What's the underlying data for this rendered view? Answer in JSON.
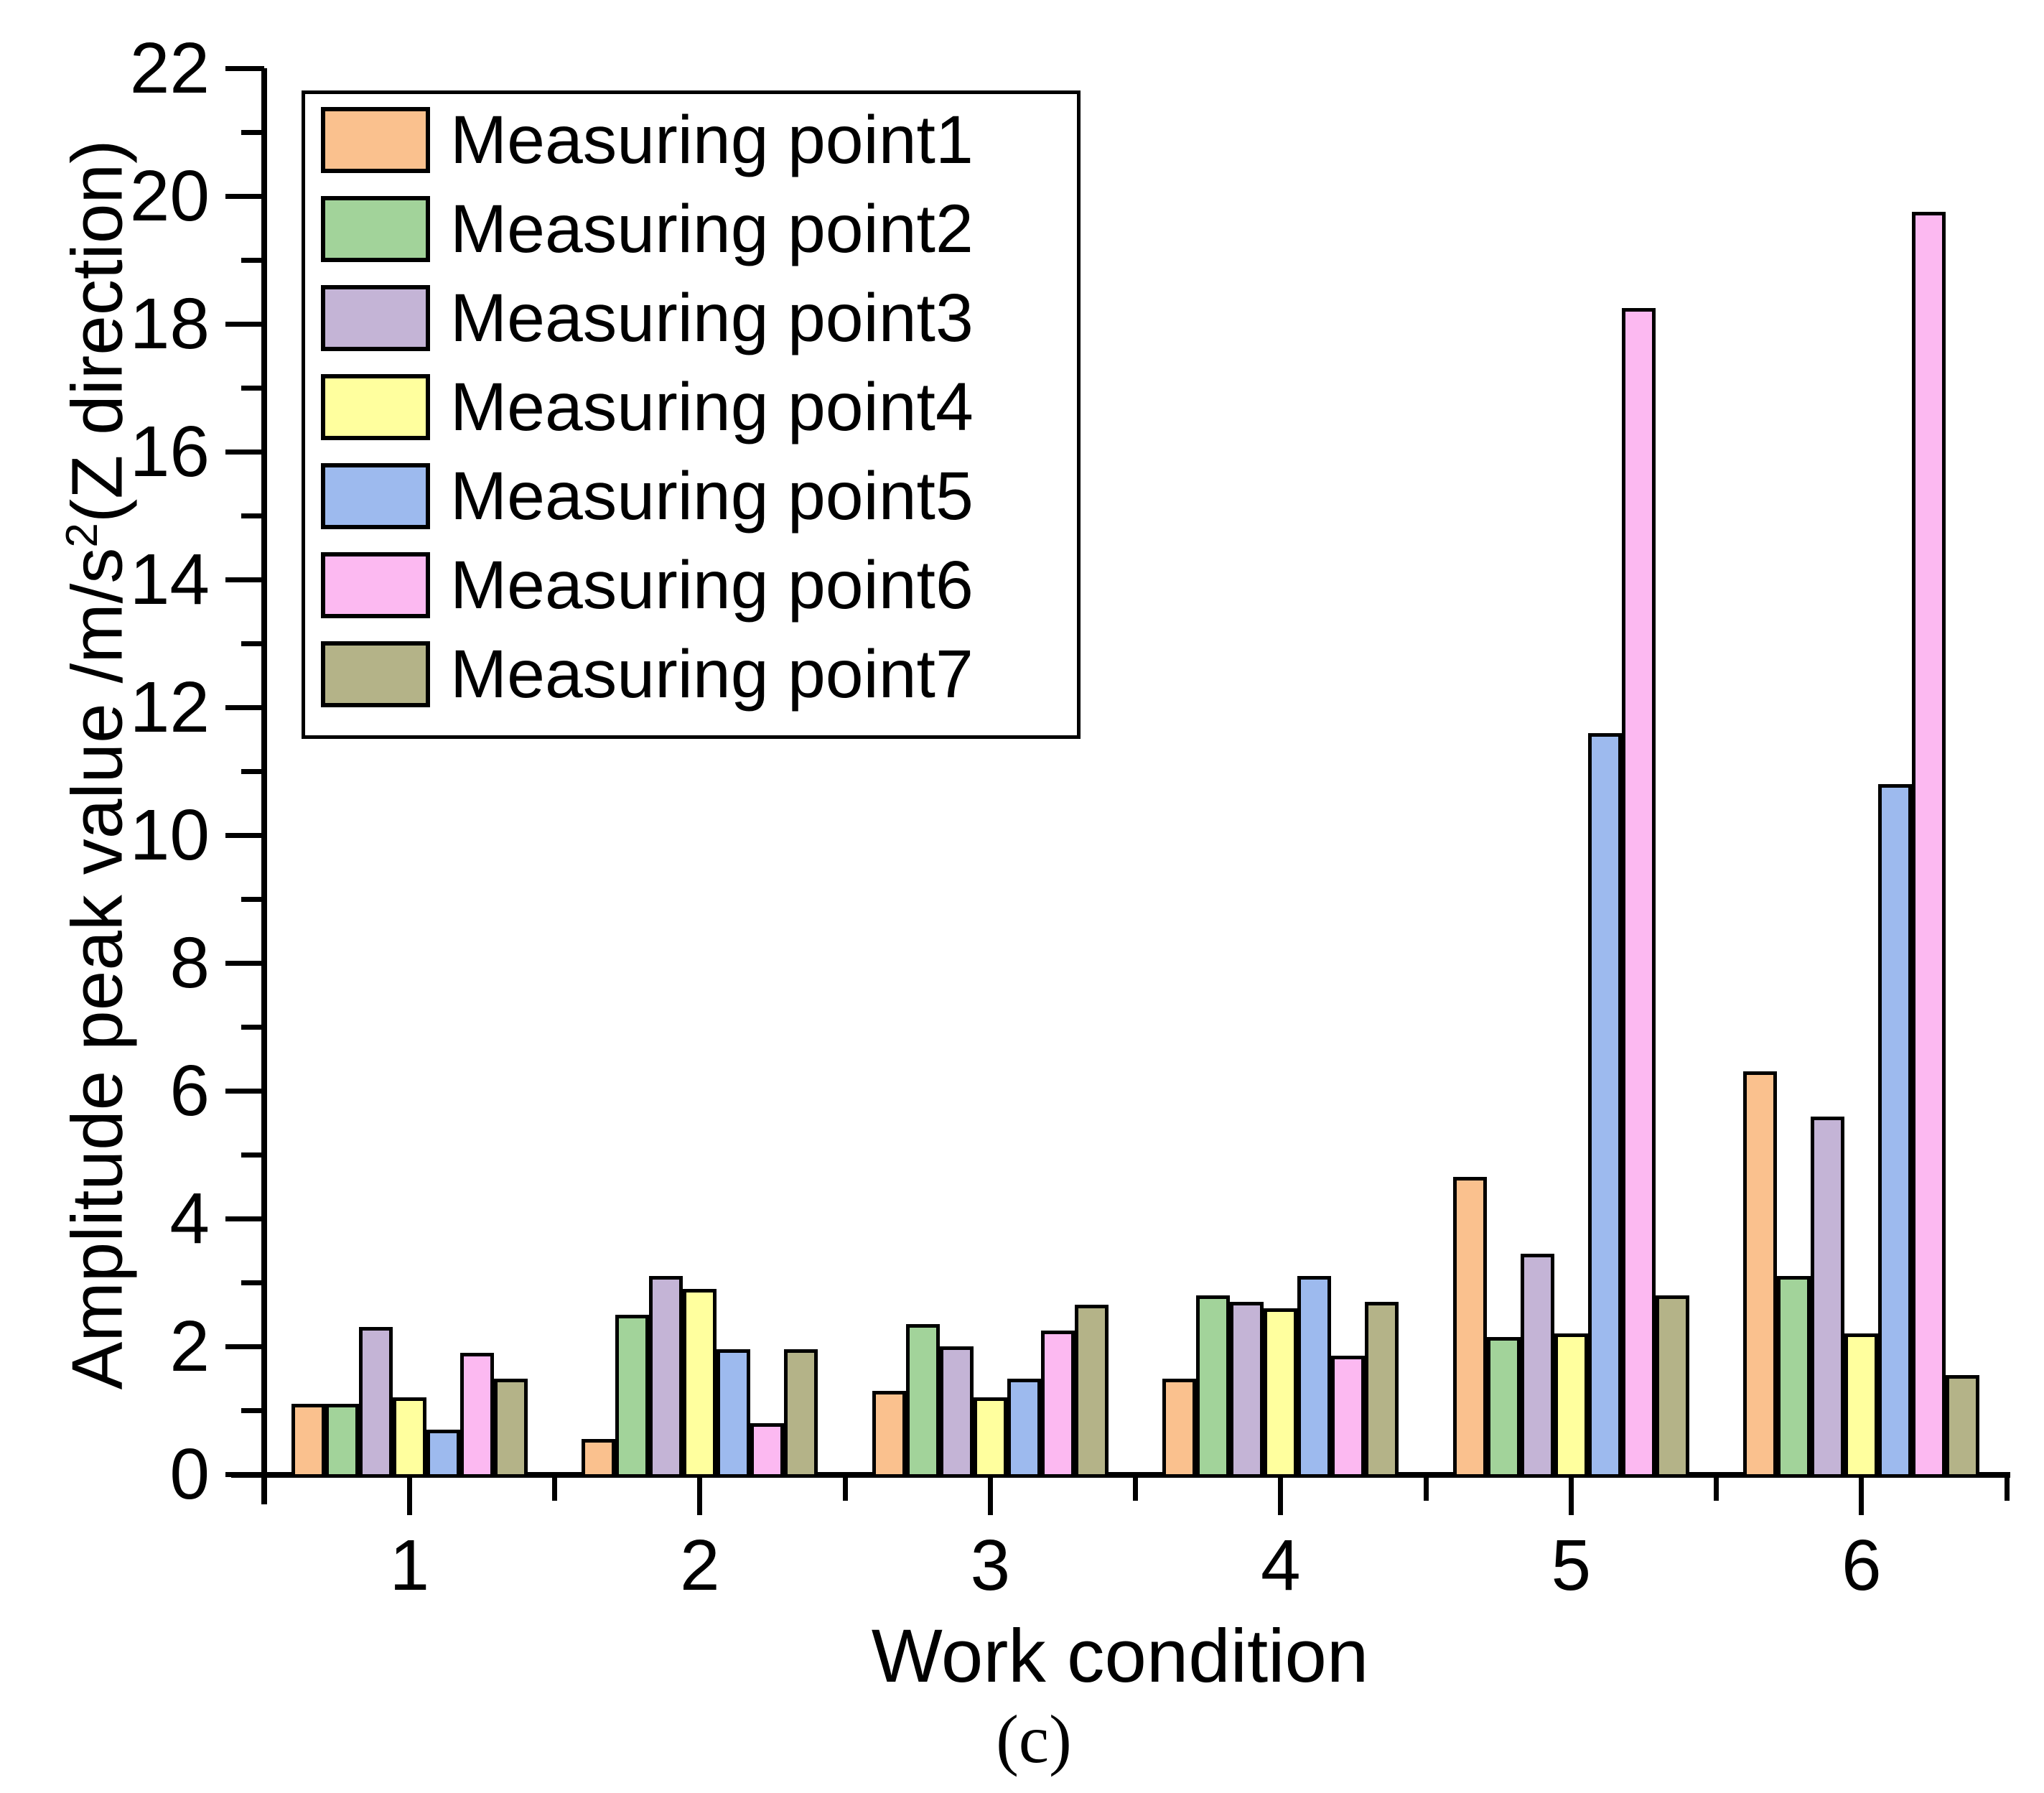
{
  "figure": {
    "caption": "(c)"
  },
  "chart_data": {
    "type": "bar",
    "title": "",
    "xlabel": "Work condition",
    "ylabel_prefix": "Amplitude peak value /m/s",
    "ylabel_sup": "2",
    "ylabel_suffix": "(Z direction)",
    "categories": [
      "1",
      "2",
      "3",
      "4",
      "5",
      "6"
    ],
    "ylim": [
      0,
      22
    ],
    "ytick_step": 2,
    "yminor_step": 1,
    "grid": false,
    "legend_position": "top-left-inside",
    "bar_border_color": "#000000",
    "series": [
      {
        "name": "Measuring point1",
        "color": "#FAC18E",
        "values": [
          1.1,
          0.55,
          1.3,
          1.5,
          4.65,
          6.3
        ]
      },
      {
        "name": "Measuring point2",
        "color": "#A2D39A",
        "values": [
          1.1,
          2.5,
          2.35,
          2.8,
          2.15,
          3.1
        ]
      },
      {
        "name": "Measuring point3",
        "color": "#C4B4D6",
        "values": [
          2.3,
          3.1,
          2.0,
          2.7,
          3.45,
          5.6
        ]
      },
      {
        "name": "Measuring point4",
        "color": "#FFFF9E",
        "values": [
          1.2,
          2.9,
          1.2,
          2.6,
          2.2,
          2.2
        ]
      },
      {
        "name": "Measuring point5",
        "color": "#9DBAEE",
        "values": [
          0.7,
          1.95,
          1.5,
          3.1,
          11.6,
          10.8
        ]
      },
      {
        "name": "Measuring point6",
        "color": "#FCB9F1",
        "values": [
          1.9,
          0.8,
          2.25,
          1.85,
          18.25,
          19.75
        ]
      },
      {
        "name": "Measuring point7",
        "color": "#B4B388",
        "values": [
          1.5,
          1.95,
          2.65,
          2.7,
          2.8,
          1.55
        ]
      }
    ]
  }
}
